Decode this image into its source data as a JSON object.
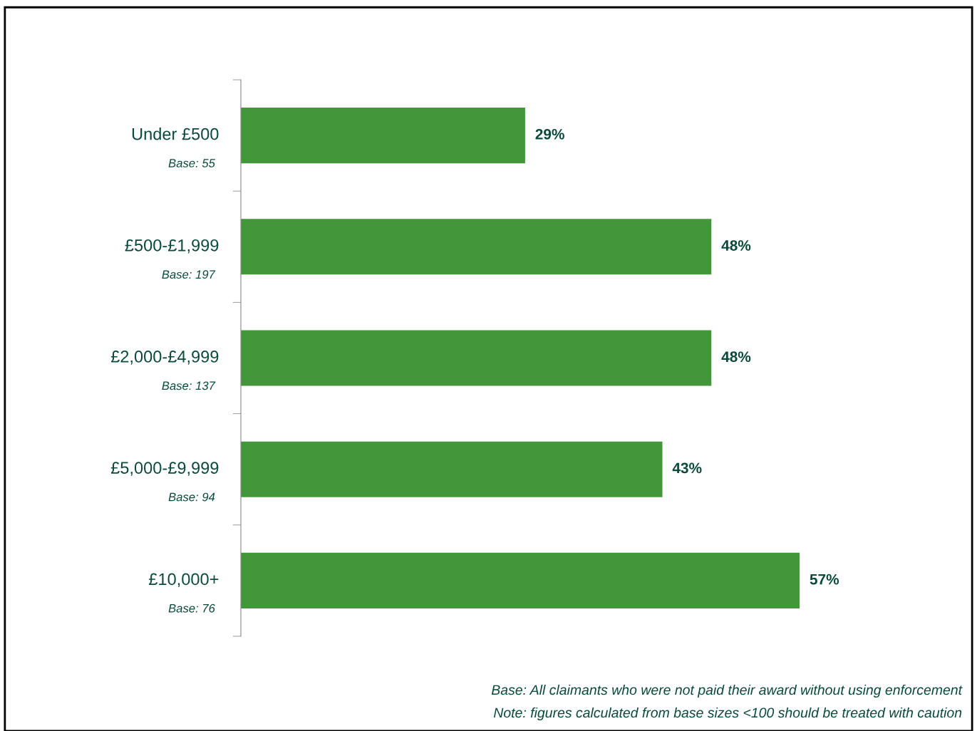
{
  "chart_data": {
    "type": "bar",
    "orientation": "horizontal",
    "categories": [
      "Under £500\nBase: 55",
      "£500-£1,999\nBase: 197",
      "£2,000-£4,999\nBase: 137",
      "£5,000-£9,999\nBase: 94",
      "£10,000+\nBase: 76"
    ],
    "values": [
      29,
      48,
      48,
      43,
      57
    ],
    "value_labels": [
      "29%",
      "48%",
      "48%",
      "43%",
      "57%"
    ],
    "color": "#43963a",
    "grid": false,
    "legend": false,
    "annotations": [
      "Base: All claimants who were not paid their award without using enforcement",
      "Note: figures calculated from base sizes <100 should be treated with caution"
    ]
  }
}
